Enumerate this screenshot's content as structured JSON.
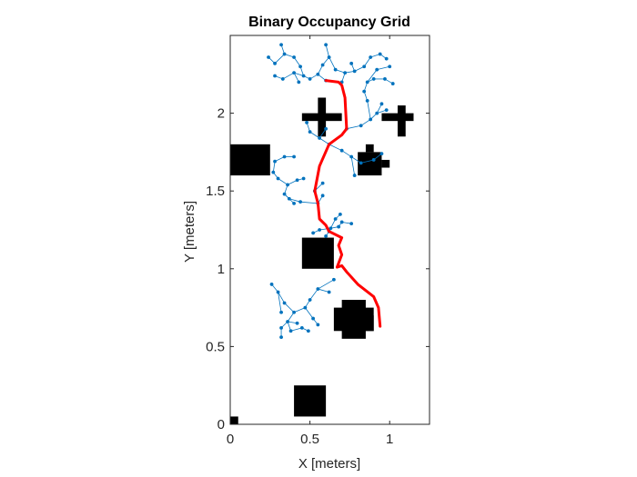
{
  "chart_data": {
    "type": "scatter",
    "title": "Binary Occupancy Grid",
    "xlabel": "X [meters]",
    "ylabel": "Y [meters]",
    "xlim": [
      0,
      1.25
    ],
    "ylim": [
      0,
      2.5
    ],
    "xticks": [
      "0",
      "0.5",
      "1"
    ],
    "xtick_values": [
      0,
      0.5,
      1
    ],
    "yticks": [
      "0",
      "0.5",
      "1",
      "1.5",
      "2"
    ],
    "ytick_values": [
      0,
      0.5,
      1,
      1.5,
      2
    ],
    "grid": false,
    "colors": {
      "obstacle": "#000000",
      "tree": "#0072BD",
      "path": "#FF0000",
      "axes": "#262626"
    },
    "obstacles": [
      [
        0,
        0,
        0.05,
        0.05
      ],
      [
        0.4,
        0.05,
        0.6,
        0.25
      ],
      [
        0.45,
        1.0,
        0.65,
        1.2
      ],
      [
        0,
        1.6,
        0.25,
        1.8
      ],
      [
        0.7,
        0.55,
        0.85,
        0.8
      ],
      [
        0.65,
        0.6,
        0.9,
        0.75
      ],
      [
        0.8,
        0.6,
        0.9,
        0.7
      ],
      [
        0.8,
        1.6,
        0.95,
        1.75
      ],
      [
        0.85,
        1.75,
        0.9,
        1.8
      ],
      [
        0.95,
        1.65,
        1.0,
        1.7
      ],
      [
        0.55,
        1.85,
        0.6,
        2.1
      ],
      [
        0.45,
        1.95,
        0.7,
        2.0
      ],
      [
        1.05,
        1.85,
        1.1,
        2.05
      ],
      [
        0.95,
        1.95,
        1.15,
        2.0
      ]
    ],
    "path": [
      [
        0.94,
        0.63
      ],
      [
        0.93,
        0.75
      ],
      [
        0.9,
        0.82
      ],
      [
        0.8,
        0.9
      ],
      [
        0.73,
        0.98
      ],
      [
        0.7,
        1.02
      ],
      [
        0.67,
        1.01
      ],
      [
        0.7,
        1.09
      ],
      [
        0.68,
        1.15
      ],
      [
        0.7,
        1.2
      ],
      [
        0.62,
        1.24
      ],
      [
        0.6,
        1.28
      ],
      [
        0.56,
        1.32
      ],
      [
        0.55,
        1.42
      ],
      [
        0.53,
        1.5
      ],
      [
        0.56,
        1.66
      ],
      [
        0.62,
        1.8
      ],
      [
        0.7,
        1.86
      ],
      [
        0.73,
        1.9
      ],
      [
        0.72,
        2.1
      ],
      [
        0.7,
        2.18
      ],
      [
        0.68,
        2.2
      ],
      [
        0.6,
        2.21
      ]
    ],
    "tree_edges": [
      [
        [
          0.65,
          0.93
        ],
        [
          0.55,
          0.87
        ]
      ],
      [
        [
          0.55,
          0.87
        ],
        [
          0.5,
          0.8
        ]
      ],
      [
        [
          0.5,
          0.8
        ],
        [
          0.47,
          0.75
        ]
      ],
      [
        [
          0.47,
          0.75
        ],
        [
          0.52,
          0.68
        ]
      ],
      [
        [
          0.52,
          0.68
        ],
        [
          0.55,
          0.64
        ]
      ],
      [
        [
          0.47,
          0.75
        ],
        [
          0.4,
          0.72
        ]
      ],
      [
        [
          0.4,
          0.72
        ],
        [
          0.36,
          0.66
        ]
      ],
      [
        [
          0.36,
          0.66
        ],
        [
          0.38,
          0.6
        ]
      ],
      [
        [
          0.4,
          0.72
        ],
        [
          0.34,
          0.78
        ]
      ],
      [
        [
          0.34,
          0.78
        ],
        [
          0.3,
          0.85
        ]
      ],
      [
        [
          0.3,
          0.85
        ],
        [
          0.26,
          0.9
        ]
      ],
      [
        [
          0.36,
          0.66
        ],
        [
          0.32,
          0.62
        ]
      ],
      [
        [
          0.32,
          0.62
        ],
        [
          0.32,
          0.56
        ]
      ],
      [
        [
          0.38,
          0.6
        ],
        [
          0.45,
          0.62
        ]
      ],
      [
        [
          0.45,
          0.62
        ],
        [
          0.49,
          0.6
        ]
      ],
      [
        [
          0.55,
          0.87
        ],
        [
          0.62,
          0.85
        ]
      ],
      [
        [
          0.36,
          0.66
        ],
        [
          0.42,
          0.65
        ]
      ],
      [
        [
          0.3,
          0.85
        ],
        [
          0.32,
          0.72
        ]
      ],
      [
        [
          0.56,
          1.25
        ],
        [
          0.63,
          1.26
        ]
      ],
      [
        [
          0.63,
          1.26
        ],
        [
          0.68,
          1.27
        ]
      ],
      [
        [
          0.68,
          1.27
        ],
        [
          0.7,
          1.3
        ]
      ],
      [
        [
          0.7,
          1.3
        ],
        [
          0.76,
          1.29
        ]
      ],
      [
        [
          0.63,
          1.26
        ],
        [
          0.66,
          1.32
        ]
      ],
      [
        [
          0.66,
          1.32
        ],
        [
          0.69,
          1.35
        ]
      ],
      [
        [
          0.56,
          1.25
        ],
        [
          0.52,
          1.23
        ]
      ],
      [
        [
          0.62,
          1.24
        ],
        [
          0.6,
          1.21
        ]
      ],
      [
        [
          0.55,
          1.42
        ],
        [
          0.44,
          1.43
        ]
      ],
      [
        [
          0.44,
          1.43
        ],
        [
          0.37,
          1.45
        ]
      ],
      [
        [
          0.37,
          1.45
        ],
        [
          0.34,
          1.48
        ]
      ],
      [
        [
          0.34,
          1.48
        ],
        [
          0.36,
          1.54
        ]
      ],
      [
        [
          0.36,
          1.54
        ],
        [
          0.42,
          1.57
        ]
      ],
      [
        [
          0.42,
          1.57
        ],
        [
          0.46,
          1.58
        ]
      ],
      [
        [
          0.36,
          1.54
        ],
        [
          0.3,
          1.58
        ]
      ],
      [
        [
          0.3,
          1.58
        ],
        [
          0.27,
          1.62
        ]
      ],
      [
        [
          0.27,
          1.62
        ],
        [
          0.28,
          1.69
        ]
      ],
      [
        [
          0.28,
          1.69
        ],
        [
          0.34,
          1.72
        ]
      ],
      [
        [
          0.34,
          1.72
        ],
        [
          0.4,
          1.72
        ]
      ],
      [
        [
          0.34,
          1.48
        ],
        [
          0.4,
          1.42
        ]
      ],
      [
        [
          0.55,
          1.42
        ],
        [
          0.58,
          1.47
        ]
      ],
      [
        [
          0.53,
          1.5
        ],
        [
          0.58,
          1.55
        ]
      ],
      [
        [
          0.62,
          1.8
        ],
        [
          0.7,
          1.76
        ]
      ],
      [
        [
          0.7,
          1.76
        ],
        [
          0.76,
          1.72
        ]
      ],
      [
        [
          0.76,
          1.72
        ],
        [
          0.82,
          1.68
        ]
      ],
      [
        [
          0.82,
          1.68
        ],
        [
          0.9,
          1.7
        ]
      ],
      [
        [
          0.9,
          1.7
        ],
        [
          0.95,
          1.74
        ]
      ],
      [
        [
          0.76,
          1.72
        ],
        [
          0.78,
          1.6
        ]
      ],
      [
        [
          0.73,
          1.9
        ],
        [
          0.82,
          1.92
        ]
      ],
      [
        [
          0.82,
          1.92
        ],
        [
          0.88,
          1.96
        ]
      ],
      [
        [
          0.88,
          1.96
        ],
        [
          0.92,
          2.0
        ]
      ],
      [
        [
          0.92,
          2.0
        ],
        [
          0.95,
          2.06
        ]
      ],
      [
        [
          0.88,
          1.96
        ],
        [
          0.86,
          2.08
        ]
      ],
      [
        [
          0.86,
          2.08
        ],
        [
          0.84,
          2.14
        ]
      ],
      [
        [
          0.84,
          2.14
        ],
        [
          0.86,
          2.2
        ]
      ],
      [
        [
          0.86,
          2.2
        ],
        [
          0.9,
          2.22
        ]
      ],
      [
        [
          0.9,
          2.22
        ],
        [
          0.97,
          2.22
        ]
      ],
      [
        [
          0.97,
          2.22
        ],
        [
          1.02,
          2.19
        ]
      ],
      [
        [
          0.86,
          2.2
        ],
        [
          0.92,
          2.28
        ]
      ],
      [
        [
          0.92,
          2.28
        ],
        [
          1.0,
          2.3
        ]
      ],
      [
        [
          0.92,
          2.0
        ],
        [
          0.98,
          2.02
        ]
      ],
      [
        [
          0.62,
          1.8
        ],
        [
          0.56,
          1.84
        ]
      ],
      [
        [
          0.56,
          1.84
        ],
        [
          0.5,
          1.88
        ]
      ],
      [
        [
          0.5,
          1.88
        ],
        [
          0.48,
          1.94
        ]
      ],
      [
        [
          0.56,
          1.84
        ],
        [
          0.6,
          1.9
        ]
      ],
      [
        [
          0.6,
          2.21
        ],
        [
          0.55,
          2.25
        ]
      ],
      [
        [
          0.55,
          2.25
        ],
        [
          0.5,
          2.22
        ]
      ],
      [
        [
          0.5,
          2.22
        ],
        [
          0.46,
          2.24
        ]
      ],
      [
        [
          0.46,
          2.24
        ],
        [
          0.4,
          2.26
        ]
      ],
      [
        [
          0.4,
          2.26
        ],
        [
          0.33,
          2.22
        ]
      ],
      [
        [
          0.33,
          2.22
        ],
        [
          0.28,
          2.24
        ]
      ],
      [
        [
          0.46,
          2.24
        ],
        [
          0.44,
          2.3
        ]
      ],
      [
        [
          0.44,
          2.3
        ],
        [
          0.4,
          2.36
        ]
      ],
      [
        [
          0.4,
          2.36
        ],
        [
          0.34,
          2.38
        ]
      ],
      [
        [
          0.34,
          2.38
        ],
        [
          0.28,
          2.32
        ]
      ],
      [
        [
          0.28,
          2.32
        ],
        [
          0.24,
          2.36
        ]
      ],
      [
        [
          0.34,
          2.38
        ],
        [
          0.32,
          2.44
        ]
      ],
      [
        [
          0.55,
          2.25
        ],
        [
          0.58,
          2.31
        ]
      ],
      [
        [
          0.58,
          2.31
        ],
        [
          0.62,
          2.36
        ]
      ],
      [
        [
          0.62,
          2.36
        ],
        [
          0.66,
          2.28
        ]
      ],
      [
        [
          0.66,
          2.28
        ],
        [
          0.72,
          2.26
        ]
      ],
      [
        [
          0.72,
          2.26
        ],
        [
          0.78,
          2.27
        ]
      ],
      [
        [
          0.78,
          2.27
        ],
        [
          0.84,
          2.3
        ]
      ],
      [
        [
          0.84,
          2.3
        ],
        [
          0.88,
          2.36
        ]
      ],
      [
        [
          0.88,
          2.36
        ],
        [
          0.94,
          2.38
        ]
      ],
      [
        [
          0.94,
          2.38
        ],
        [
          0.98,
          2.35
        ]
      ],
      [
        [
          0.78,
          2.27
        ],
        [
          0.76,
          2.32
        ]
      ],
      [
        [
          0.4,
          2.26
        ],
        [
          0.43,
          2.2
        ]
      ],
      [
        [
          0.62,
          2.36
        ],
        [
          0.6,
          2.44
        ]
      ],
      [
        [
          0.72,
          2.26
        ],
        [
          0.7,
          2.2
        ]
      ]
    ]
  }
}
